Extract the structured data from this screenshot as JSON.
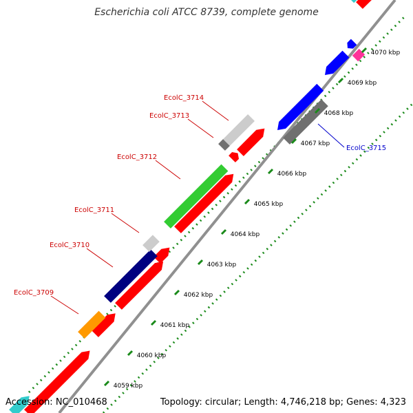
{
  "title": "Escherichia coli ATCC 8739, complete genome",
  "footer": {
    "accession": "Accession: NC_010468",
    "topology": "Topology: circular; Length: 4,746,218 bp; Genes: 4,323"
  },
  "colors": {
    "backbone": "#909090",
    "tick_dots": "#1a8a1a",
    "label_red": "#cc0000",
    "label_blue": "#0000cc"
  },
  "tick_labels": [
    "4059 kbp",
    "4060 kbp",
    "4061 kbp",
    "4062 kbp",
    "4063 kbp",
    "4064 kbp",
    "4065 kbp",
    "4066 kbp",
    "4067 kbp",
    "4068 kbp",
    "4069 kbp",
    "4070 kbp"
  ],
  "labeled_genes": [
    {
      "label": "EcolC_3709",
      "color": "#cc0000"
    },
    {
      "label": "EcolC_3710",
      "color": "#cc0000"
    },
    {
      "label": "EcolC_3711",
      "color": "#cc0000"
    },
    {
      "label": "EcolC_3712",
      "color": "#cc0000"
    },
    {
      "label": "EcolC_3713",
      "color": "#cc0000"
    },
    {
      "label": "EcolC_3714",
      "color": "#cc0000"
    },
    {
      "label": "EcolC_3715",
      "color": "#0000cc"
    }
  ],
  "feature_colors": {
    "cds_red": "#ff0000",
    "gene_green": "#33cc33",
    "gene_navy": "#000080",
    "gene_orange": "#ff9900",
    "gene_lightgray": "#cccccc",
    "gene_darkgray": "#707070",
    "gene_blue": "#0000ff",
    "gene_magenta": "#ff3399",
    "gene_cyan": "#33cccc"
  }
}
